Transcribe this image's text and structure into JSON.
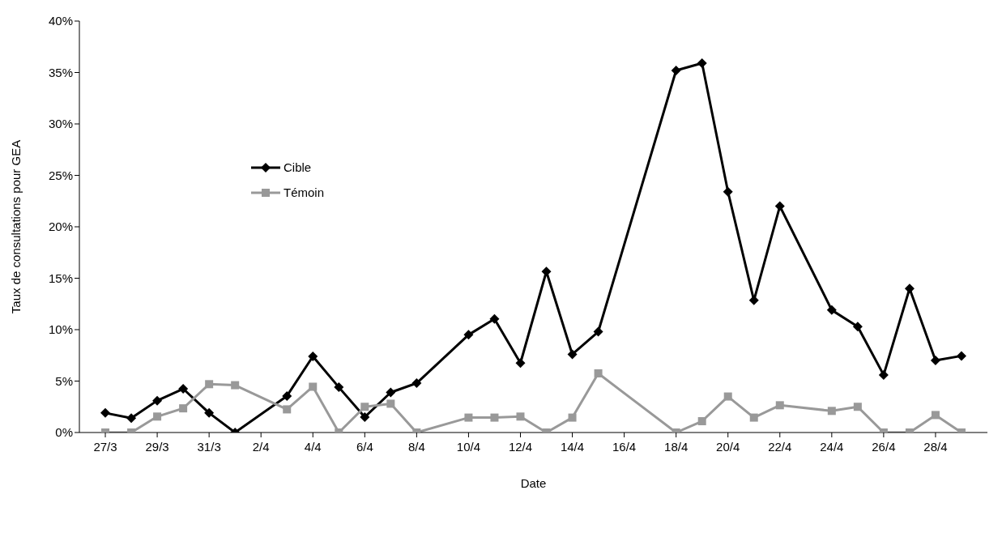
{
  "chart_data": {
    "type": "line",
    "xlabel": "Date",
    "ylabel": "Taux de consultations pour GEA",
    "x": [
      "--03-27",
      "--03-28",
      "--03-29",
      "--03-30",
      "--03-31",
      "--04-01",
      "--04-03",
      "--04-04",
      "--04-05",
      "--04-06",
      "--04-07",
      "--04-08",
      "--04-10",
      "--04-11",
      "--04-12",
      "--04-13",
      "--04-14",
      "--04-15",
      "--04-18",
      "--04-19",
      "--04-20",
      "--04-21",
      "--04-22",
      "--04-24",
      "--04-25",
      "--04-26",
      "--04-27",
      "--04-28",
      "--04-29"
    ],
    "series": [
      {
        "name": "Cible",
        "color": "#000000",
        "marker": "diamond",
        "values": [
          1.9,
          1.4,
          3.1,
          4.25,
          1.9,
          0,
          3.55,
          7.4,
          4.4,
          1.5,
          3.9,
          4.8,
          9.5,
          11.05,
          6.75,
          15.65,
          7.6,
          9.8,
          35.2,
          35.9,
          23.4,
          12.85,
          22.0,
          11.9,
          10.3,
          5.6,
          14.0,
          7.0,
          7.45
        ]
      },
      {
        "name": "Témoin",
        "color": "#999999",
        "marker": "square",
        "values": [
          0,
          0,
          1.55,
          2.35,
          4.7,
          4.6,
          2.25,
          4.45,
          0,
          2.5,
          2.8,
          0,
          1.45,
          1.45,
          1.55,
          0,
          1.45,
          5.75,
          0,
          1.1,
          3.5,
          1.45,
          2.65,
          2.1,
          2.5,
          0,
          0,
          1.7,
          0
        ]
      }
    ],
    "xlim": [
      "--03-26",
      "--04-30"
    ],
    "xticks": [
      {
        "value": "--03-27",
        "label": "27/3"
      },
      {
        "value": "--03-29",
        "label": "29/3"
      },
      {
        "value": "--03-31",
        "label": "31/3"
      },
      {
        "value": "--04-02",
        "label": "2/4"
      },
      {
        "value": "--04-04",
        "label": "4/4"
      },
      {
        "value": "--04-06",
        "label": "6/4"
      },
      {
        "value": "--04-08",
        "label": "8/4"
      },
      {
        "value": "--04-10",
        "label": "10/4"
      },
      {
        "value": "--04-12",
        "label": "12/4"
      },
      {
        "value": "--04-14",
        "label": "14/4"
      },
      {
        "value": "--04-16",
        "label": "16/4"
      },
      {
        "value": "--04-18",
        "label": "18/4"
      },
      {
        "value": "--04-20",
        "label": "20/4"
      },
      {
        "value": "--04-22",
        "label": "22/4"
      },
      {
        "value": "--04-24",
        "label": "24/4"
      },
      {
        "value": "--04-26",
        "label": "26/4"
      },
      {
        "value": "--04-28",
        "label": "28/4"
      }
    ],
    "ylim": [
      0,
      40
    ],
    "yticks": [
      {
        "value": 0,
        "label": "0%"
      },
      {
        "value": 5,
        "label": "5%"
      },
      {
        "value": 10,
        "label": "10%"
      },
      {
        "value": 15,
        "label": "15%"
      },
      {
        "value": 20,
        "label": "20%"
      },
      {
        "value": 25,
        "label": "25%"
      },
      {
        "value": 30,
        "label": "30%"
      },
      {
        "value": 35,
        "label": "35%"
      },
      {
        "value": 40,
        "label": "40%"
      }
    ],
    "grid": false,
    "legend": "top left",
    "line_style": "solid"
  }
}
